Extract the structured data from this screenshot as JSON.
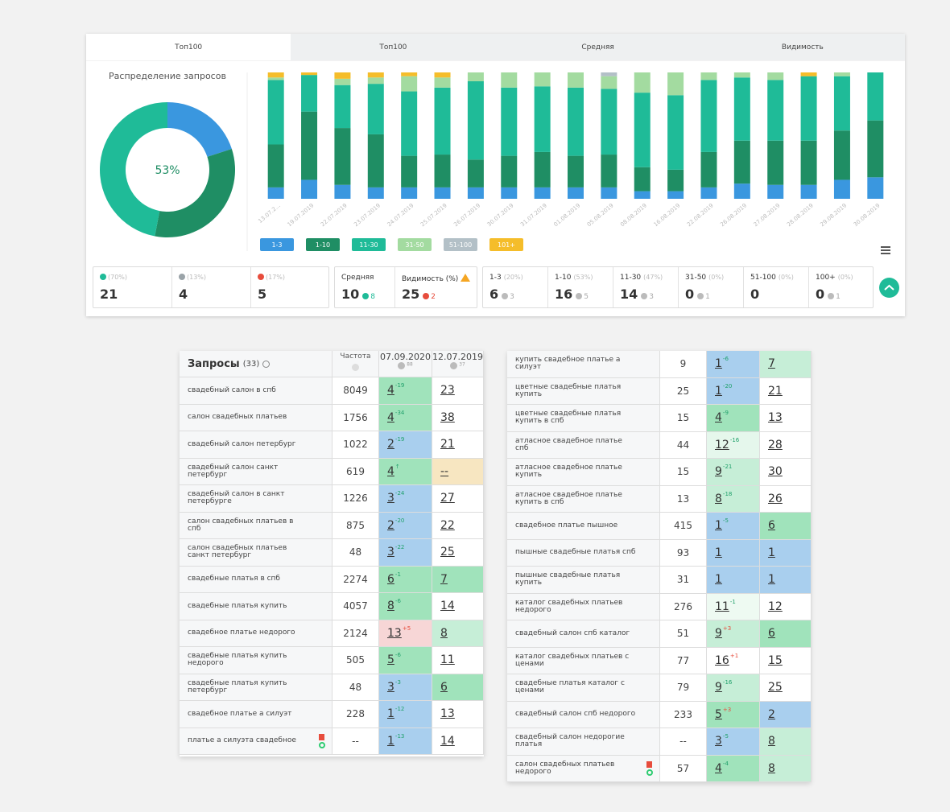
{
  "tabs": [
    "Топ100",
    "Топ100",
    "Средняя",
    "Видимость"
  ],
  "donut": {
    "type": "pie",
    "title": "Распределение запросов",
    "center_label": "53%",
    "values": [
      20,
      33,
      47
    ],
    "colors": [
      "#3a97df",
      "#1f8e64",
      "#1fbb98"
    ]
  },
  "chart_data": {
    "type": "bar",
    "stacked": true,
    "categories": [
      "13.07.2...",
      "19.07.2019",
      "22.07.2019",
      "23.07.2019",
      "24.07.2019",
      "25.07.2019",
      "26.07.2019",
      "30.07.2019",
      "31.07.2019",
      "01.08.2019",
      "05.08.2019",
      "08.08.2019",
      "16.08.2019",
      "22.08.2019",
      "26.08.2019",
      "27.08.2019",
      "28.08.2019",
      "29.08.2019",
      "30.08.2019"
    ],
    "ylim": [
      0,
      100
    ],
    "series": [
      {
        "name": "1-3",
        "color": "#3a97df",
        "values": [
          9,
          15,
          11,
          9,
          9,
          9,
          9,
          9,
          9,
          9,
          9,
          6,
          6,
          9,
          12,
          11,
          11,
          15,
          17
        ]
      },
      {
        "name": "1-10",
        "color": "#1f8e64",
        "values": [
          34,
          54,
          45,
          42,
          25,
          26,
          22,
          25,
          28,
          25,
          26,
          19,
          17,
          28,
          34,
          35,
          35,
          39,
          45
        ]
      },
      {
        "name": "11-30",
        "color": "#1fbb98",
        "values": [
          51,
          29,
          34,
          40,
          51,
          53,
          62,
          54,
          52,
          54,
          52,
          59,
          59,
          57,
          50,
          48,
          51,
          43,
          38
        ]
      },
      {
        "name": "31-50",
        "color": "#a3dba0",
        "values": [
          2,
          0,
          5,
          5,
          12,
          8,
          7,
          12,
          11,
          12,
          10,
          16,
          18,
          6,
          4,
          6,
          0,
          3,
          0
        ]
      },
      {
        "name": "51-100",
        "color": "#b3c0c7",
        "values": [
          0,
          0,
          0,
          0,
          0,
          0,
          0,
          0,
          0,
          0,
          3,
          0,
          0,
          0,
          0,
          0,
          0,
          0,
          0
        ]
      },
      {
        "name": "101+",
        "color": "#f5bd2a",
        "values": [
          4,
          2,
          5,
          4,
          3,
          4,
          0,
          0,
          0,
          0,
          0,
          0,
          0,
          0,
          0,
          0,
          3,
          0,
          0
        ]
      }
    ]
  },
  "summary": [
    {
      "share": "(70%)",
      "value": 21,
      "color": "#1fbb98"
    },
    {
      "share": "(13%)",
      "value": 4,
      "color": "#9aa3a8"
    },
    {
      "share": "(17%)",
      "value": 5,
      "color": "#e74c3c"
    }
  ],
  "metrics": [
    {
      "label": "Средняя",
      "value": 10,
      "change": 8,
      "color": "#1fbb98"
    },
    {
      "label": "Видимость (%)",
      "value": 25,
      "change": 2,
      "color": "#e74c3c"
    }
  ],
  "ranges": [
    {
      "label": "1-3",
      "share": "(20%)",
      "value": 6,
      "change": 3
    },
    {
      "label": "1-10",
      "share": "(53%)",
      "value": 16,
      "change": 5
    },
    {
      "label": "11-30",
      "share": "(47%)",
      "value": 14,
      "change": 3
    },
    {
      "label": "31-50",
      "share": "(0%)",
      "value": 0,
      "change": 1
    },
    {
      "label": "51-100",
      "share": "(0%)",
      "value": 0
    },
    {
      "label": "100+",
      "share": "(0%)",
      "value": 0,
      "change": 1
    }
  ],
  "table_header": {
    "title": "Запросы",
    "count": "(33)",
    "freq": "Частота",
    "dates": [
      {
        "date": "07.09.2020",
        "count": 88
      },
      {
        "date": "12.07.2019",
        "count": 37
      }
    ]
  },
  "tables": [
    {
      "rows": [
        {
          "q": "свадебный салон в спб",
          "f": 8049,
          "p1": 4,
          "d1": "-19",
          "c1": "#a0e3bb",
          "p2": 23,
          "c2": "#ffffff"
        },
        {
          "q": "салон свадебных платьев",
          "f": 1756,
          "p1": 4,
          "d1": "-34",
          "c1": "#a0e3bb",
          "p2": 38,
          "c2": "#ffffff"
        },
        {
          "q": "свадебный салон петербург",
          "f": 1022,
          "p1": 2,
          "d1": "-19",
          "c1": "#a9cfee",
          "p2": 21,
          "c2": "#ffffff"
        },
        {
          "q": "свадебный салон санкт петербург",
          "f": 619,
          "p1": 4,
          "d1": "↑",
          "c1": "#a0e3bb",
          "p2": "--",
          "c2": "#f7e6c1"
        },
        {
          "q": "свадебный салон в санкт петербурге",
          "f": 1226,
          "p1": 3,
          "d1": "-24",
          "c1": "#a9cfee",
          "p2": 27,
          "c2": "#ffffff"
        },
        {
          "q": "салон свадебных платьев в спб",
          "f": 875,
          "p1": 2,
          "d1": "-20",
          "c1": "#a9cfee",
          "p2": 22,
          "c2": "#ffffff"
        },
        {
          "q": "салон свадебных платьев санкт петербург",
          "f": 48,
          "p1": 3,
          "d1": "-22",
          "c1": "#a9cfee",
          "p2": 25,
          "c2": "#ffffff"
        },
        {
          "q": "свадебные платья в спб",
          "f": 2274,
          "p1": 6,
          "d1": "-1",
          "c1": "#a0e3bb",
          "p2": 7,
          "c2": "#a0e3bb"
        },
        {
          "q": "свадебные платья купить",
          "f": 4057,
          "p1": 8,
          "d1": "-6",
          "c1": "#a0e3bb",
          "p2": 14,
          "c2": "#ffffff"
        },
        {
          "q": "свадебное платье недорого",
          "f": 2124,
          "p1": 13,
          "d1": "+5",
          "c1": "#f7d6d6",
          "p2": 8,
          "c2": "#c6eed7"
        },
        {
          "q": "свадебные платья купить недорого",
          "f": 505,
          "p1": 5,
          "d1": "-6",
          "c1": "#a0e3bb",
          "p2": 11,
          "c2": "#ffffff"
        },
        {
          "q": "свадебные платья купить петербург",
          "f": 48,
          "p1": 3,
          "d1": "-3",
          "c1": "#a9cfee",
          "p2": 6,
          "c2": "#a0e3bb"
        },
        {
          "q": "свадебное платье а силуэт",
          "f": 228,
          "p1": 1,
          "d1": "-12",
          "c1": "#a9cfee",
          "p2": 13,
          "c2": "#ffffff"
        },
        {
          "q": "платье а силуэта свадебное",
          "f": "--",
          "p1": 1,
          "d1": "-13",
          "c1": "#a9cfee",
          "p2": 14,
          "c2": "#ffffff"
        }
      ]
    },
    {
      "rows": [
        {
          "q": "купить свадебное платье а силуэт",
          "f": 9,
          "p1": 1,
          "d1": "-6",
          "c1": "#a9cfee",
          "p2": 7,
          "c2": "#c6eed7"
        },
        {
          "q": "цветные свадебные платья купить",
          "f": 25,
          "p1": 1,
          "d1": "-20",
          "c1": "#a9cfee",
          "p2": 21,
          "c2": "#ffffff"
        },
        {
          "q": "цветные свадебные платья купить в спб",
          "f": 15,
          "p1": 4,
          "d1": "-9",
          "c1": "#a0e3bb",
          "p2": 13,
          "c2": "#ffffff"
        },
        {
          "q": "атласное свадебное платье спб",
          "f": 44,
          "p1": 12,
          "d1": "-16",
          "c1": "#e5f7ec",
          "p2": 28,
          "c2": "#ffffff"
        },
        {
          "q": "атласное свадебное платье купить",
          "f": 15,
          "p1": 9,
          "d1": "-21",
          "c1": "#c6eed7",
          "p2": 30,
          "c2": "#ffffff"
        },
        {
          "q": "атласное свадебное платье купить в спб",
          "f": 13,
          "p1": 8,
          "d1": "-18",
          "c1": "#c6eed7",
          "p2": 26,
          "c2": "#ffffff"
        },
        {
          "q": "свадебное платье пышное",
          "f": 415,
          "p1": 1,
          "d1": "-5",
          "c1": "#a9cfee",
          "p2": 6,
          "c2": "#a0e3bb"
        },
        {
          "q": "пышные свадебные платья спб",
          "f": 93,
          "p1": 1,
          "c1": "#a9cfee",
          "p2": 1,
          "c2": "#a9cfee"
        },
        {
          "q": "пышные свадебные платья купить",
          "f": 31,
          "p1": 1,
          "c1": "#a9cfee",
          "p2": 1,
          "c2": "#a9cfee"
        },
        {
          "q": "каталог свадебных платьев недорого",
          "f": 276,
          "p1": 11,
          "d1": "-1",
          "c1": "#eefaf2",
          "p2": 12,
          "c2": "#ffffff"
        },
        {
          "q": "свадебный салон спб каталог",
          "f": 51,
          "p1": 9,
          "d1": "+3",
          "c1": "#c6eed7",
          "p2": 6,
          "c2": "#a0e3bb"
        },
        {
          "q": "каталог свадебных платьев с ценами",
          "f": 77,
          "p1": 16,
          "d1": "+1",
          "c1": "#ffffff",
          "p2": 15,
          "c2": "#ffffff"
        },
        {
          "q": "свадебные платья каталог с ценами",
          "f": 79,
          "p1": 9,
          "d1": "-16",
          "c1": "#c6eed7",
          "p2": 25,
          "c2": "#ffffff"
        },
        {
          "q": "свадебный салон спб недорого",
          "f": 233,
          "p1": 5,
          "d1": "+3",
          "c1": "#a0e3bb",
          "p2": 2,
          "c2": "#a9cfee"
        },
        {
          "q": "свадебный салон недорогие платья",
          "f": "--",
          "p1": 3,
          "d1": "-5",
          "c1": "#a9cfee",
          "p2": 8,
          "c2": "#c6eed7"
        },
        {
          "q": "салон свадебных платьев недорого",
          "f": 57,
          "p1": 4,
          "d1": "-4",
          "c1": "#a0e3bb",
          "p2": 8,
          "c2": "#c6eed7"
        }
      ]
    }
  ]
}
